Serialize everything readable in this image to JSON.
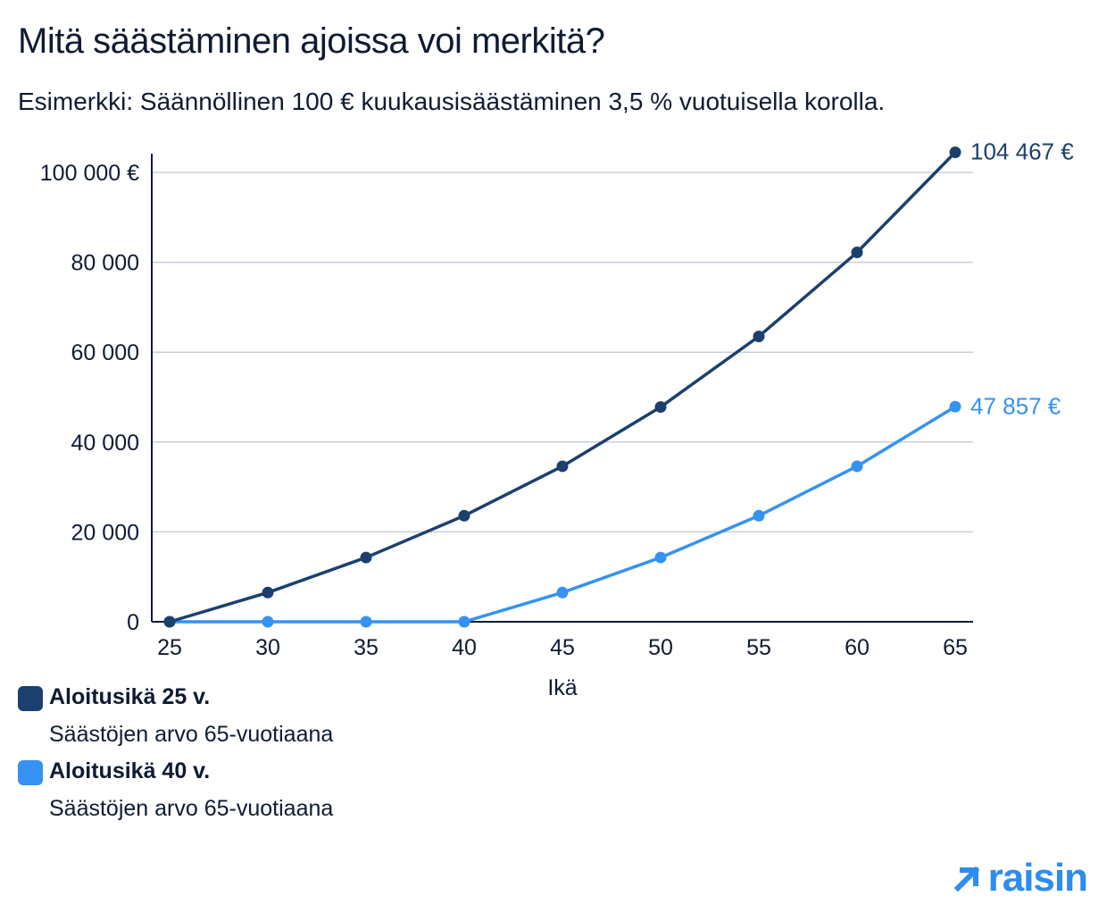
{
  "title": "Mitä säästäminen ajoissa voi merkitä?",
  "subtitle": "Esimerkki: Säännöllinen 100 € kuukausisäästäminen 3,5 % vuotuisella korolla.",
  "colors": {
    "dark": "#1b406e",
    "light": "#3592f2",
    "grid": "#c9cfd8",
    "axis": "#0f1b33"
  },
  "chart_data": {
    "type": "line",
    "xlabel": "Ikä",
    "ylabel": "",
    "x": [
      25,
      30,
      35,
      40,
      45,
      50,
      55,
      60,
      65
    ],
    "ylim": [
      0,
      100000
    ],
    "yticks": [
      0,
      20000,
      40000,
      60000,
      80000,
      100000
    ],
    "ytick_labels": [
      "0",
      "20 000",
      "40 000",
      "60 000",
      "80 000",
      "100 000 €"
    ],
    "xtick_labels": [
      "25",
      "30",
      "35",
      "40",
      "45",
      "50",
      "55",
      "60",
      "65"
    ],
    "grid": true,
    "legend_position": "bottom-left",
    "series": [
      {
        "name": "Aloitusikä 25 v.",
        "color": "#1b406e",
        "values": [
          0,
          6500,
          14300,
          23600,
          34600,
          47800,
          63500,
          82200,
          104467
        ],
        "end_label": "104 467 €"
      },
      {
        "name": "Aloitusikä 40 v.",
        "color": "#3592f2",
        "values": [
          0,
          0,
          0,
          0,
          6500,
          14300,
          23600,
          34600,
          47857
        ],
        "end_label": "47 857 €"
      }
    ]
  },
  "legend": [
    {
      "name": "Aloitusikä 25 v.",
      "desc": "Säästöjen arvo 65-vuotiaana",
      "color": "#1b406e"
    },
    {
      "name": "Aloitusikä 40 v.",
      "desc": "Säästöjen arvo 65-vuotiaana",
      "color": "#3592f2"
    }
  ],
  "logo": {
    "text": "raisin",
    "icon": "arrow-up-right-icon"
  }
}
